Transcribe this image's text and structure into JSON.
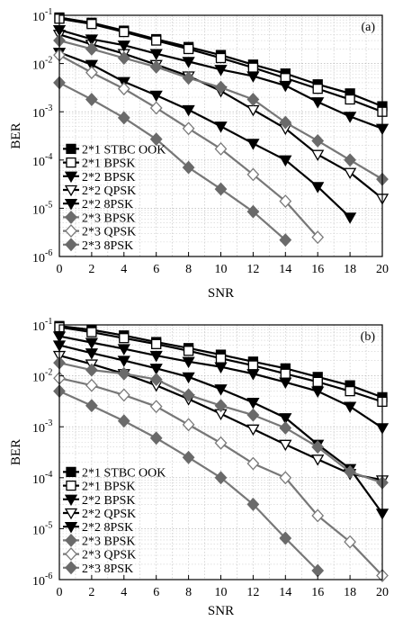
{
  "chart_data": [
    {
      "type": "line",
      "panel_label": "(a)",
      "xlabel": "SNR",
      "ylabel": "BER",
      "x_ticks": [
        "0",
        "2",
        "4",
        "6",
        "8",
        "10",
        "12",
        "14",
        "16",
        "18",
        "20"
      ],
      "y_ticks": [
        {
          "base": "10",
          "exp": "-1"
        },
        {
          "base": "10",
          "exp": "-2"
        },
        {
          "base": "10",
          "exp": "-3"
        },
        {
          "base": "10",
          "exp": "-4"
        },
        {
          "base": "10",
          "exp": "-5"
        },
        {
          "base": "10",
          "exp": "-6"
        }
      ],
      "x_range": [
        0,
        20
      ],
      "y_range": [
        1e-06,
        0.1
      ],
      "y_scale": "log",
      "grid": true,
      "legend_position": "bottom-left",
      "x": [
        0,
        2,
        4,
        6,
        8,
        10,
        12,
        14,
        16,
        18,
        20
      ],
      "series": [
        {
          "name": "2*1 STBC OOK",
          "marker": "square-filled",
          "color": "#000000",
          "x": [
            0,
            2,
            4,
            6,
            8,
            10,
            12,
            14,
            16,
            18,
            20
          ],
          "values": [
            0.09,
            0.07,
            0.048,
            0.032,
            0.022,
            0.015,
            0.0095,
            0.0062,
            0.0037,
            0.0024,
            0.0013
          ]
        },
        {
          "name": "2*1 BPSK",
          "marker": "square-open",
          "color": "#000000",
          "x": [
            0,
            2,
            4,
            6,
            8,
            10,
            12,
            14,
            16,
            18,
            20
          ],
          "values": [
            0.085,
            0.066,
            0.045,
            0.03,
            0.02,
            0.013,
            0.0082,
            0.005,
            0.003,
            0.0018,
            0.001
          ]
        },
        {
          "name": "2*2 BPSK",
          "marker": "triangle-down-filled",
          "color": "#000000",
          "x": [
            0,
            2,
            4,
            6,
            8,
            10,
            12,
            14,
            16,
            18
          ],
          "values": [
            0.017,
            0.0095,
            0.0042,
            0.0022,
            0.0011,
            0.0005,
            0.00022,
            0.0001,
            2.8e-05,
            6.5e-06
          ]
        },
        {
          "name": "2*2 QPSK",
          "marker": "triangle-down-open",
          "color": "#000000",
          "x": [
            0,
            2,
            4,
            6,
            8,
            10,
            12,
            14,
            16,
            18,
            20
          ],
          "values": [
            0.04,
            0.025,
            0.016,
            0.0095,
            0.0055,
            0.0027,
            0.0011,
            0.00045,
            0.00013,
            5.5e-05,
            1.6e-05
          ]
        },
        {
          "name": "2*2 8PSK",
          "marker": "triangle-down-filled",
          "color": "#000000",
          "x": [
            0,
            2,
            4,
            6,
            8,
            10,
            12,
            14,
            16,
            18,
            20
          ],
          "values": [
            0.05,
            0.032,
            0.024,
            0.016,
            0.011,
            0.0075,
            0.0055,
            0.0035,
            0.0016,
            0.0008,
            0.00045
          ]
        },
        {
          "name": "2*3 BPSK",
          "marker": "diamond-filled",
          "color": "#555555",
          "x": [
            0,
            2,
            4,
            6,
            8,
            10,
            12,
            14
          ],
          "values": [
            0.004,
            0.0018,
            0.00075,
            0.00027,
            7e-05,
            2.5e-05,
            8.5e-06,
            2.2e-06
          ]
        },
        {
          "name": "2*3 QPSK",
          "marker": "diamond-open",
          "color": "#555555",
          "x": [
            0,
            2,
            4,
            6,
            8,
            10,
            12,
            14,
            16
          ],
          "values": [
            0.015,
            0.0065,
            0.003,
            0.0012,
            0.00045,
            0.00017,
            5e-05,
            1.4e-05,
            2.5e-06
          ]
        },
        {
          "name": "2*3 8PSK",
          "marker": "diamond-filled",
          "color": "#555555",
          "x": [
            0,
            2,
            4,
            6,
            8,
            10,
            12,
            14,
            16,
            18,
            20
          ],
          "values": [
            0.03,
            0.02,
            0.013,
            0.0085,
            0.005,
            0.0032,
            0.0018,
            0.0006,
            0.00025,
            0.0001,
            4e-05
          ]
        }
      ]
    },
    {
      "type": "line",
      "panel_label": "(b)",
      "xlabel": "SNR",
      "ylabel": "BER",
      "x_ticks": [
        "0",
        "2",
        "4",
        "6",
        "8",
        "10",
        "12",
        "14",
        "16",
        "18",
        "20"
      ],
      "y_ticks": [
        {
          "base": "10",
          "exp": "-1"
        },
        {
          "base": "10",
          "exp": "-2"
        },
        {
          "base": "10",
          "exp": "-3"
        },
        {
          "base": "10",
          "exp": "-4"
        },
        {
          "base": "10",
          "exp": "-5"
        },
        {
          "base": "10",
          "exp": "-6"
        }
      ],
      "x_range": [
        0,
        20
      ],
      "y_range": [
        1e-06,
        0.1
      ],
      "y_scale": "log",
      "grid": true,
      "legend_position": "bottom-left",
      "series": [
        {
          "name": "2*1 STBC OOK",
          "marker": "square-filled",
          "color": "#000000",
          "x": [
            0,
            2,
            4,
            6,
            8,
            10,
            12,
            14,
            16,
            18,
            20
          ],
          "values": [
            0.095,
            0.08,
            0.062,
            0.046,
            0.035,
            0.026,
            0.019,
            0.014,
            0.0095,
            0.0065,
            0.0038
          ]
        },
        {
          "name": "2*1 BPSK",
          "marker": "square-open",
          "color": "#000000",
          "x": [
            0,
            2,
            4,
            6,
            8,
            10,
            12,
            14,
            16,
            18,
            20
          ],
          "values": [
            0.09,
            0.072,
            0.055,
            0.042,
            0.031,
            0.022,
            0.016,
            0.011,
            0.0076,
            0.005,
            0.0031
          ]
        },
        {
          "name": "2*2 BPSK",
          "marker": "triangle-down-filled",
          "color": "#000000",
          "x": [
            0,
            2,
            4,
            6,
            8,
            10,
            12,
            14,
            16,
            18,
            20
          ],
          "values": [
            0.04,
            0.028,
            0.02,
            0.014,
            0.0095,
            0.0055,
            0.003,
            0.0015,
            0.00045,
            0.00015,
            2e-05
          ]
        },
        {
          "name": "2*2 QPSK",
          "marker": "triangle-down-open",
          "color": "#000000",
          "x": [
            0,
            2,
            4,
            6,
            8,
            10,
            12,
            14,
            16,
            18,
            20
          ],
          "values": [
            0.025,
            0.017,
            0.011,
            0.0065,
            0.0035,
            0.0018,
            0.0009,
            0.00045,
            0.00023,
            0.00012,
            9e-05
          ]
        },
        {
          "name": "2*2 8PSK",
          "marker": "triangle-down-filled",
          "color": "#000000",
          "x": [
            0,
            2,
            4,
            6,
            8,
            10,
            12,
            14,
            16,
            18,
            20
          ],
          "values": [
            0.06,
            0.045,
            0.034,
            0.025,
            0.019,
            0.015,
            0.011,
            0.0075,
            0.005,
            0.0025,
            0.00095
          ]
        },
        {
          "name": "2*3 BPSK",
          "marker": "diamond-filled",
          "color": "#555555",
          "x": [
            0,
            2,
            4,
            6,
            8,
            10,
            12,
            14,
            16
          ],
          "values": [
            0.005,
            0.0026,
            0.0013,
            0.0006,
            0.00025,
            0.0001,
            3e-05,
            6.5e-06,
            1.5e-06
          ]
        },
        {
          "name": "2*3 QPSK",
          "marker": "diamond-open",
          "color": "#555555",
          "x": [
            0,
            2,
            4,
            6,
            8,
            10,
            12,
            14,
            16,
            18,
            20
          ],
          "values": [
            0.009,
            0.0065,
            0.0042,
            0.0025,
            0.0011,
            0.00048,
            0.00019,
            0.0001,
            1.8e-05,
            5.5e-06,
            1.2e-06
          ]
        },
        {
          "name": "2*3 8PSK",
          "marker": "diamond-filled",
          "color": "#555555",
          "x": [
            0,
            2,
            4,
            6,
            8,
            10,
            12,
            14,
            16,
            18,
            20
          ],
          "values": [
            0.018,
            0.013,
            0.011,
            0.0085,
            0.0042,
            0.0026,
            0.0017,
            0.00095,
            0.0004,
            0.00013,
            8e-05
          ]
        }
      ]
    }
  ]
}
